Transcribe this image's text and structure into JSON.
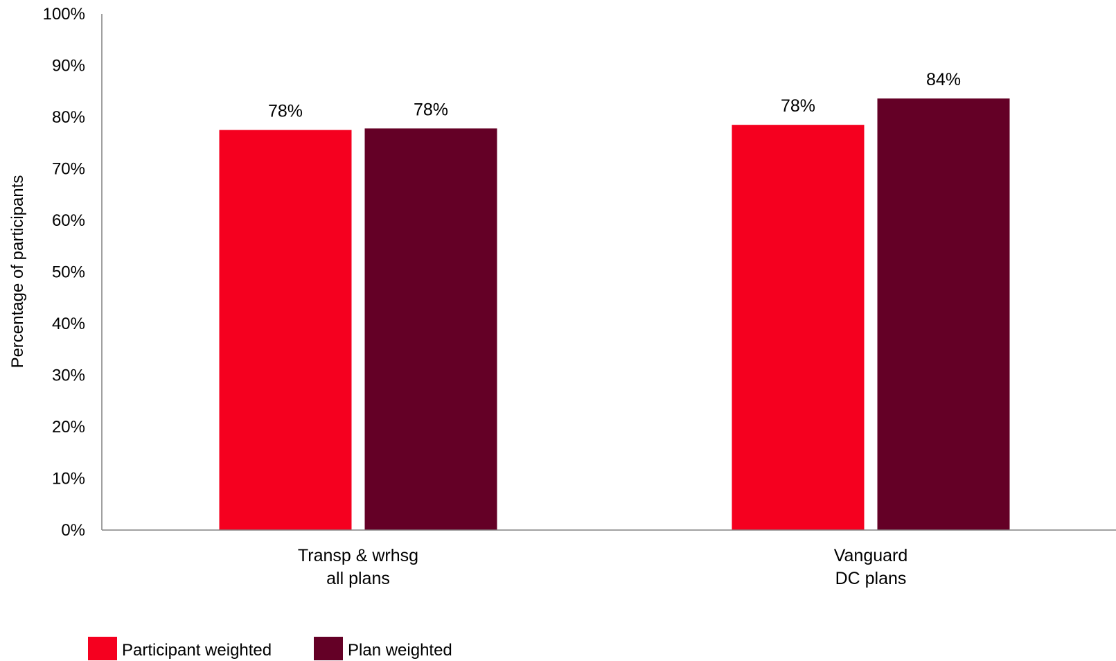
{
  "chart_data": {
    "type": "bar",
    "categories": [
      [
        "Transp & wrhsg",
        "all plans"
      ],
      [
        "Vanguard",
        "DC plans"
      ]
    ],
    "series": [
      {
        "name": "Participant weighted",
        "color": "#f5001f",
        "values": [
          77.5,
          78.5
        ],
        "labels": [
          "78%",
          "78%"
        ]
      },
      {
        "name": "Plan weighted",
        "color": "#640026",
        "values": [
          77.8,
          83.6
        ],
        "labels": [
          "78%",
          "84%"
        ]
      }
    ],
    "ylabel": "Percentage of participants",
    "ylim": [
      0,
      100
    ],
    "yticks": [
      0,
      10,
      20,
      30,
      40,
      50,
      60,
      70,
      80,
      90,
      100
    ],
    "ytick_format": "%",
    "grid": false,
    "legend_position": "bottom-left"
  }
}
